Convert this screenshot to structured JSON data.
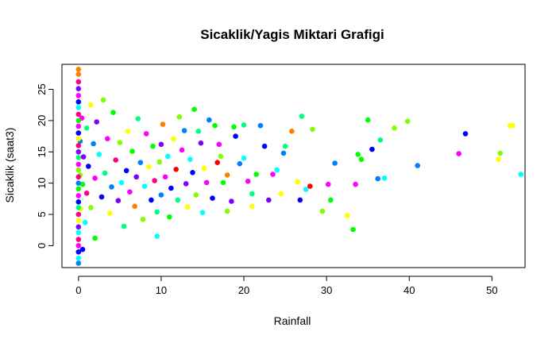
{
  "chart_data": {
    "type": "scatter",
    "title": "Sicaklik/Yagis Miktari Grafigi",
    "xlabel": "Rainfall",
    "ylabel": "Sicaklik (saat3)",
    "xlim": [
      -2,
      54
    ],
    "ylim": [
      -3.5,
      29
    ],
    "xticks": [
      0,
      10,
      20,
      30,
      40,
      50
    ],
    "yticks": [
      0,
      5,
      10,
      15,
      20,
      25
    ],
    "palette": [
      "#ff0000",
      "#ff8000",
      "#ffff00",
      "#80ff00",
      "#00ff00",
      "#00ff80",
      "#00ffff",
      "#0080ff",
      "#0000ff",
      "#8000ff",
      "#ff00ff",
      "#ff0080"
    ],
    "legend": "none",
    "grid": false,
    "point_shape": "filled-circle",
    "points": [
      [
        53.5,
        11.4,
        6
      ],
      [
        52.5,
        19.2,
        2
      ],
      [
        52.2,
        19.2,
        2
      ],
      [
        51.0,
        14.8,
        3
      ],
      [
        50.8,
        13.8,
        2
      ],
      [
        46.8,
        17.9,
        8
      ],
      [
        46.0,
        14.7,
        10
      ],
      [
        41.0,
        12.8,
        7
      ],
      [
        39.8,
        19.9,
        3
      ],
      [
        38.2,
        18.8,
        3
      ],
      [
        37.0,
        10.8,
        6
      ],
      [
        36.5,
        16.9,
        5
      ],
      [
        36.2,
        10.7,
        7
      ],
      [
        35.5,
        15.4,
        8
      ],
      [
        35.0,
        20.1,
        4
      ],
      [
        34.2,
        13.8,
        4
      ],
      [
        33.8,
        14.6,
        4
      ],
      [
        33.5,
        9.8,
        10
      ],
      [
        33.2,
        2.6,
        4
      ],
      [
        32.5,
        4.8,
        2
      ],
      [
        31.0,
        13.2,
        7
      ],
      [
        30.5,
        7.3,
        4
      ],
      [
        30.2,
        9.8,
        10
      ],
      [
        29.5,
        5.5,
        3
      ],
      [
        28.3,
        18.6,
        3
      ],
      [
        28.0,
        9.5,
        0
      ],
      [
        27.5,
        9.0,
        6
      ],
      [
        27.0,
        20.7,
        5
      ],
      [
        26.8,
        7.3,
        8
      ],
      [
        26.5,
        10.2,
        2
      ],
      [
        25.8,
        18.3,
        1
      ],
      [
        25.0,
        15.9,
        5
      ],
      [
        24.8,
        14.8,
        7
      ],
      [
        24.5,
        8.3,
        2
      ],
      [
        24.0,
        12.1,
        6
      ],
      [
        23.5,
        11.4,
        10
      ],
      [
        23.0,
        7.3,
        9
      ],
      [
        22.5,
        15.9,
        8
      ],
      [
        22.0,
        19.2,
        7
      ],
      [
        21.5,
        11.4,
        4
      ],
      [
        21.0,
        8.3,
        5
      ],
      [
        21.0,
        6.3,
        2
      ],
      [
        20.5,
        10.3,
        10
      ],
      [
        20.0,
        14.0,
        6
      ],
      [
        20.0,
        19.3,
        5
      ],
      [
        19.5,
        13.1,
        7
      ],
      [
        19.0,
        17.5,
        8
      ],
      [
        18.8,
        19.0,
        4
      ],
      [
        18.5,
        7.1,
        9
      ],
      [
        18.0,
        11.3,
        1
      ],
      [
        18.0,
        5.5,
        3
      ],
      [
        17.5,
        10.1,
        4
      ],
      [
        17.2,
        14.3,
        3
      ],
      [
        17.0,
        16.2,
        10
      ],
      [
        16.8,
        13.3,
        0
      ],
      [
        16.5,
        19.2,
        4
      ],
      [
        16.2,
        7.6,
        8
      ],
      [
        15.8,
        20.1,
        7
      ],
      [
        15.5,
        10.1,
        10
      ],
      [
        15.2,
        12.4,
        2
      ],
      [
        15.0,
        5.3,
        6
      ],
      [
        14.8,
        16.4,
        9
      ],
      [
        14.5,
        18.3,
        5
      ],
      [
        14.2,
        8.1,
        3
      ],
      [
        14.0,
        21.8,
        4
      ],
      [
        13.8,
        11.7,
        8
      ],
      [
        13.5,
        13.8,
        6
      ],
      [
        13.2,
        6.2,
        2
      ],
      [
        13.0,
        9.9,
        9
      ],
      [
        12.8,
        18.4,
        7
      ],
      [
        12.5,
        15.3,
        10
      ],
      [
        12.2,
        20.6,
        3
      ],
      [
        12.0,
        7.3,
        5
      ],
      [
        11.8,
        12.2,
        0
      ],
      [
        11.5,
        17.1,
        2
      ],
      [
        11.2,
        9.2,
        8
      ],
      [
        11.0,
        4.6,
        4
      ],
      [
        10.8,
        14.3,
        6
      ],
      [
        10.5,
        11.0,
        10
      ],
      [
        10.2,
        19.4,
        1
      ],
      [
        10.0,
        8.1,
        7
      ],
      [
        10.0,
        16.2,
        9
      ],
      [
        9.8,
        13.4,
        3
      ],
      [
        9.5,
        5.4,
        5
      ],
      [
        9.5,
        1.5,
        6
      ],
      [
        9.2,
        10.4,
        11
      ],
      [
        9.0,
        15.9,
        4
      ],
      [
        8.8,
        7.3,
        8
      ],
      [
        8.5,
        12.6,
        2
      ],
      [
        8.2,
        17.9,
        10
      ],
      [
        8.0,
        9.5,
        6
      ],
      [
        7.8,
        4.2,
        3
      ],
      [
        7.5,
        13.3,
        7
      ],
      [
        7.2,
        20.3,
        5
      ],
      [
        7.0,
        11.0,
        9
      ],
      [
        6.8,
        6.3,
        1
      ],
      [
        6.5,
        15.1,
        4
      ],
      [
        6.2,
        8.6,
        10
      ],
      [
        6.0,
        18.3,
        2
      ],
      [
        5.8,
        12.0,
        8
      ],
      [
        5.5,
        3.1,
        5
      ],
      [
        5.2,
        10.1,
        6
      ],
      [
        5.0,
        16.5,
        3
      ],
      [
        4.8,
        7.2,
        9
      ],
      [
        4.5,
        13.7,
        11
      ],
      [
        4.2,
        21.3,
        4
      ],
      [
        4.0,
        9.4,
        7
      ],
      [
        3.8,
        5.2,
        2
      ],
      [
        3.5,
        17.1,
        10
      ],
      [
        3.2,
        11.6,
        5
      ],
      [
        3.0,
        23.3,
        3
      ],
      [
        2.8,
        7.8,
        8
      ],
      [
        2.5,
        14.6,
        6
      ],
      [
        2.2,
        19.8,
        9
      ],
      [
        2.0,
        1.2,
        4
      ],
      [
        2.0,
        10.8,
        10
      ],
      [
        1.8,
        16.3,
        7
      ],
      [
        1.5,
        6.1,
        3
      ],
      [
        1.5,
        22.5,
        2
      ],
      [
        1.2,
        12.7,
        8
      ],
      [
        1.0,
        8.4,
        11
      ],
      [
        1.0,
        18.8,
        5
      ],
      [
        0.8,
        3.7,
        6
      ],
      [
        0.6,
        14.2,
        9
      ],
      [
        0.5,
        -0.6,
        8
      ],
      [
        0.5,
        9.8,
        4
      ],
      [
        0.4,
        20.4,
        10
      ],
      [
        0.3,
        5.9,
        2
      ],
      [
        0.2,
        16.7,
        7
      ],
      [
        0.2,
        11.3,
        3
      ],
      [
        0.0,
        28.2,
        1
      ],
      [
        0.0,
        27.4,
        1
      ],
      [
        0.0,
        26.2,
        11
      ],
      [
        0.0,
        25.1,
        9
      ],
      [
        0.0,
        24.0,
        10
      ],
      [
        0.0,
        23.0,
        8
      ],
      [
        0.0,
        22.1,
        6
      ],
      [
        0.0,
        21.0,
        11
      ],
      [
        0.0,
        20.0,
        4
      ],
      [
        0.0,
        19.1,
        10
      ],
      [
        0.0,
        18.0,
        8
      ],
      [
        0.0,
        17.1,
        2
      ],
      [
        0.0,
        16.0,
        11
      ],
      [
        0.0,
        15.0,
        9
      ],
      [
        0.0,
        14.1,
        5
      ],
      [
        0.0,
        13.0,
        10
      ],
      [
        0.0,
        12.1,
        3
      ],
      [
        0.0,
        11.0,
        11
      ],
      [
        0.0,
        10.0,
        7
      ],
      [
        0.0,
        9.1,
        4
      ],
      [
        0.0,
        8.0,
        10
      ],
      [
        0.0,
        7.0,
        8
      ],
      [
        0.0,
        6.1,
        5
      ],
      [
        0.0,
        5.0,
        11
      ],
      [
        0.0,
        4.0,
        2
      ],
      [
        0.0,
        3.0,
        9
      ],
      [
        0.0,
        2.1,
        6
      ],
      [
        0.0,
        1.0,
        11
      ],
      [
        0.0,
        0.0,
        10
      ],
      [
        0.0,
        -1.0,
        8
      ],
      [
        0.0,
        -2.0,
        6
      ],
      [
        0.0,
        -2.8,
        7
      ]
    ]
  }
}
